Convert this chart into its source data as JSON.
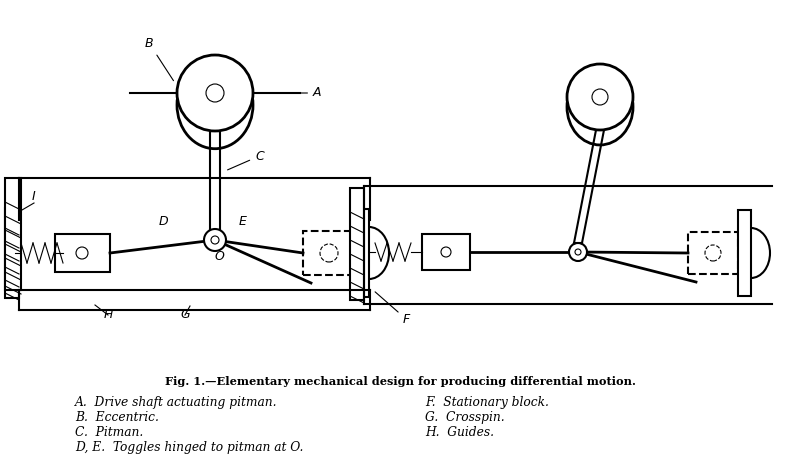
{
  "title": "Fig. 1.—Elementary mechanical design for producing differential motion.",
  "caption_items_left": [
    "A.  Drive shaft actuating pitman.",
    "B.  Eccentric.",
    "C.  Pitman.",
    "D, E.  Toggles hinged to pitman at O."
  ],
  "caption_items_right": [
    "F.  Stationary block.",
    "G.  Crosspin.",
    "H.  Guides."
  ],
  "bg_color": "#ffffff",
  "line_color": "#000000",
  "lw": 1.5,
  "thin_lw": 0.8
}
